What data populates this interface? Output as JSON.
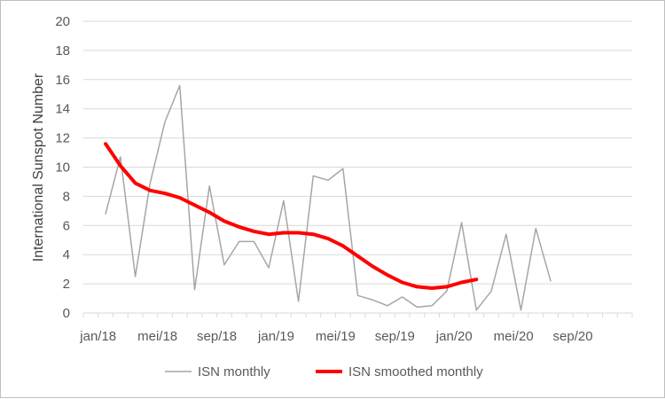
{
  "chart_data": {
    "type": "line",
    "title": "",
    "xlabel": "",
    "ylabel": "International Sunspot Number",
    "ylim": [
      0,
      20
    ],
    "y_ticks": [
      "0",
      "2",
      "4",
      "6",
      "8",
      "10",
      "12",
      "14",
      "16",
      "18",
      "20"
    ],
    "x_start": "2017-12",
    "x_end": "2020-12",
    "x_ticks": [
      {
        "label": "jan/18",
        "date": "2018-01"
      },
      {
        "label": "mei/18",
        "date": "2018-05"
      },
      {
        "label": "sep/18",
        "date": "2018-09"
      },
      {
        "label": "jan/19",
        "date": "2019-01"
      },
      {
        "label": "mei/19",
        "date": "2019-05"
      },
      {
        "label": "sep/19",
        "date": "2019-09"
      },
      {
        "label": "jan/20",
        "date": "2020-01"
      },
      {
        "label": "mei/20",
        "date": "2020-05"
      },
      {
        "label": "sep/20",
        "date": "2020-09"
      }
    ],
    "grid": true,
    "legend_position": "bottom",
    "series": [
      {
        "name": "ISN monthly",
        "color": "#a6a6a6",
        "points": [
          [
            "2018-01",
            6.8
          ],
          [
            "2018-02",
            10.7
          ],
          [
            "2018-03",
            2.5
          ],
          [
            "2018-04",
            8.9
          ],
          [
            "2018-05",
            13.1
          ],
          [
            "2018-06",
            15.6
          ],
          [
            "2018-07",
            1.6
          ],
          [
            "2018-08",
            8.7
          ],
          [
            "2018-09",
            3.3
          ],
          [
            "2018-10",
            4.9
          ],
          [
            "2018-11",
            4.9
          ],
          [
            "2018-12",
            3.1
          ],
          [
            "2019-01",
            7.7
          ],
          [
            "2019-02",
            0.8
          ],
          [
            "2019-03",
            9.4
          ],
          [
            "2019-04",
            9.1
          ],
          [
            "2019-05",
            9.9
          ],
          [
            "2019-06",
            1.2
          ],
          [
            "2019-07",
            0.9
          ],
          [
            "2019-08",
            0.5
          ],
          [
            "2019-09",
            1.1
          ],
          [
            "2019-10",
            0.4
          ],
          [
            "2019-11",
            0.5
          ],
          [
            "2019-12",
            1.5
          ],
          [
            "2020-01",
            6.2
          ],
          [
            "2020-02",
            0.2
          ],
          [
            "2020-03",
            1.5
          ],
          [
            "2020-04",
            5.4
          ],
          [
            "2020-05",
            0.2
          ],
          [
            "2020-06",
            5.8
          ],
          [
            "2020-07",
            2.2
          ]
        ]
      },
      {
        "name": "ISN smoothed monthly",
        "color": "#ff0000",
        "points": [
          [
            "2018-01",
            11.6
          ],
          [
            "2018-02",
            10.1
          ],
          [
            "2018-03",
            8.9
          ],
          [
            "2018-04",
            8.4
          ],
          [
            "2018-05",
            8.2
          ],
          [
            "2018-06",
            7.9
          ],
          [
            "2018-07",
            7.4
          ],
          [
            "2018-08",
            6.9
          ],
          [
            "2018-09",
            6.3
          ],
          [
            "2018-10",
            5.9
          ],
          [
            "2018-11",
            5.6
          ],
          [
            "2018-12",
            5.4
          ],
          [
            "2019-01",
            5.5
          ],
          [
            "2019-02",
            5.5
          ],
          [
            "2019-03",
            5.4
          ],
          [
            "2019-04",
            5.1
          ],
          [
            "2019-05",
            4.6
          ],
          [
            "2019-06",
            3.9
          ],
          [
            "2019-07",
            3.2
          ],
          [
            "2019-08",
            2.6
          ],
          [
            "2019-09",
            2.1
          ],
          [
            "2019-10",
            1.8
          ],
          [
            "2019-11",
            1.7
          ],
          [
            "2019-12",
            1.8
          ],
          [
            "2020-01",
            2.1
          ],
          [
            "2020-02",
            2.3
          ]
        ]
      }
    ]
  }
}
